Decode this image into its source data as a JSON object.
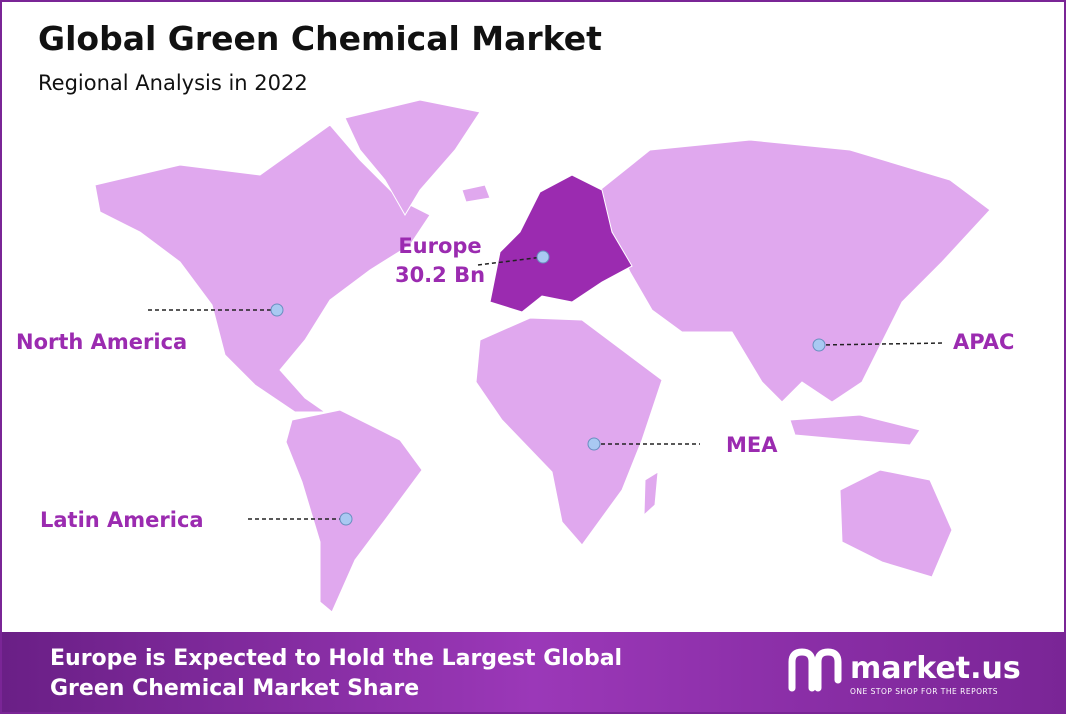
{
  "header": {
    "title": "Global Green Chemical Market",
    "subtitle": "Regional Analysis in 2022"
  },
  "regions": [
    {
      "label": "Europe",
      "value": "30.2 Bn"
    },
    {
      "label": "North America"
    },
    {
      "label": "APAC"
    },
    {
      "label": "MEA"
    },
    {
      "label": "Latin America"
    }
  ],
  "footer": {
    "lines": [
      "Europe is Expected to Hold the Largest Global",
      "Green Chemical Market Share"
    ]
  },
  "logo": {
    "name": "market.us",
    "tagline": "ONE STOP SHOP FOR THE REPORTS"
  }
}
